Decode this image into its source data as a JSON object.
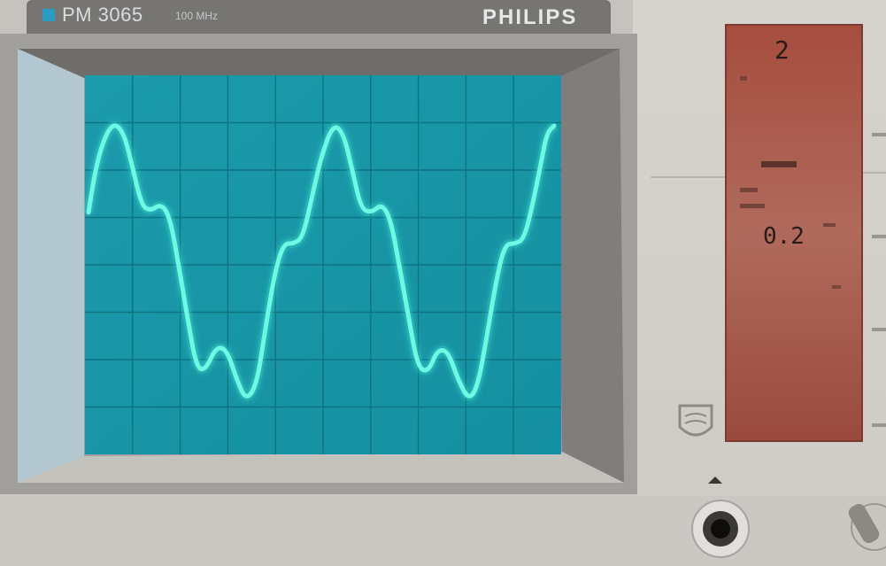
{
  "header": {
    "model": "PM 3065",
    "bandwidth": "100 MHz",
    "brand": "PHILIPS"
  },
  "readout": {
    "top_value": "2",
    "mid_value": "0.2"
  },
  "colors": {
    "screen": "#1a9aa8",
    "trace": "#5ff5df",
    "bezel": "#8e8d8a",
    "panel": "#d6d3cd",
    "display": "#a9584a"
  },
  "icons": [
    "philips-logo-icon",
    "bnc-connector-icon",
    "knob-icon"
  ]
}
